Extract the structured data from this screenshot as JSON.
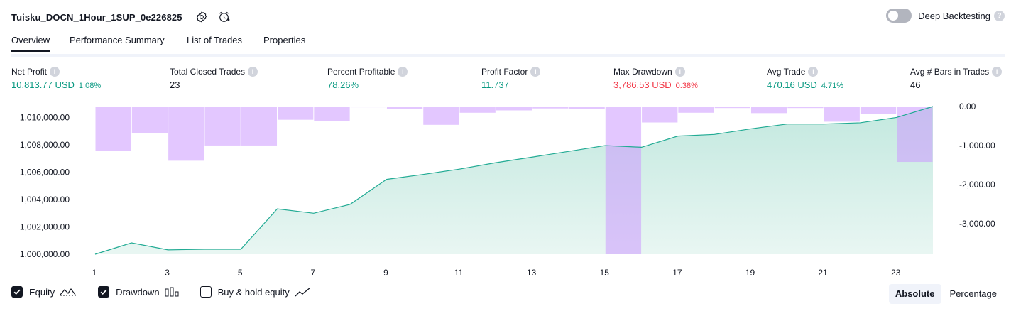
{
  "header": {
    "strategy_name": "Tuisku_DOCN_1Hour_1SUP_0e226825",
    "deep_backtesting_label": "Deep Backtesting",
    "deep_backtesting_enabled": false,
    "help_glyph": "?"
  },
  "tabs": [
    {
      "label": "Overview",
      "active": true
    },
    {
      "label": "Performance Summary",
      "active": false
    },
    {
      "label": "List of Trades",
      "active": false
    },
    {
      "label": "Properties",
      "active": false
    }
  ],
  "metrics": [
    {
      "label": "Net Profit",
      "value": "10,813.77 USD",
      "pct": "1.08%",
      "color": "green"
    },
    {
      "label": "Total Closed Trades",
      "value": "23",
      "pct": "",
      "color": "dark"
    },
    {
      "label": "Percent Profitable",
      "value": "78.26%",
      "pct": "",
      "color": "green"
    },
    {
      "label": "Profit Factor",
      "value": "11.737",
      "pct": "",
      "color": "green"
    },
    {
      "label": "Max Drawdown",
      "value": "3,786.53 USD",
      "pct": "0.38%",
      "color": "red"
    },
    {
      "label": "Avg Trade",
      "value": "470.16 USD",
      "pct": "4.71%",
      "color": "green"
    },
    {
      "label": "Avg # Bars in Trades",
      "value": "46",
      "pct": "",
      "color": "dark"
    }
  ],
  "info_glyph": "i",
  "chart_data": {
    "type": "line",
    "equity": {
      "name": "Equity",
      "x": [
        1,
        2,
        3,
        4,
        5,
        6,
        7,
        8,
        9,
        10,
        11,
        12,
        13,
        14,
        15,
        16,
        17,
        18,
        19,
        20,
        21,
        22,
        23,
        24
      ],
      "values": [
        1000000,
        1000830,
        1000320,
        1000360,
        1000360,
        1003320,
        1003000,
        1003650,
        1005480,
        1005840,
        1006230,
        1006700,
        1007110,
        1007530,
        1007950,
        1007830,
        1008650,
        1008770,
        1009180,
        1009530,
        1009530,
        1009620,
        1010010,
        1010813.77
      ]
    },
    "drawdown": {
      "name": "Drawdown",
      "x": [
        1,
        2,
        3,
        4,
        5,
        6,
        7,
        8,
        9,
        10,
        11,
        12,
        13,
        14,
        15,
        16,
        17,
        18,
        19,
        20,
        21,
        22,
        23,
        24
      ],
      "values": [
        -10,
        -1140,
        -680,
        -1390,
        -1000,
        -1000,
        -340,
        -370,
        -20,
        -60,
        -470,
        -160,
        -100,
        -50,
        -70,
        -3786.53,
        -410,
        -160,
        -40,
        -170,
        -40,
        -390,
        -190,
        -1420
      ]
    },
    "x_ticks": [
      "1",
      "3",
      "5",
      "7",
      "9",
      "11",
      "13",
      "15",
      "17",
      "19",
      "21",
      "23"
    ],
    "left_axis": {
      "ticks": [
        "1,010,000.00",
        "1,008,000.00",
        "1,006,000.00",
        "1,004,000.00",
        "1,002,000.00",
        "1,000,000.00"
      ],
      "range": [
        1000000,
        1010813.77
      ]
    },
    "right_axis": {
      "ticks": [
        "0.00",
        "-1,000.00",
        "-2,000.00",
        "-3,000.00"
      ],
      "range": [
        -3786.53,
        0
      ]
    },
    "colors": {
      "equity_line": "#22ab94",
      "equity_fill": "#c9ebe3",
      "drawdown_bar": "#cc99ff",
      "axis_text": "#131722"
    }
  },
  "legend": {
    "equity": {
      "label": "Equity",
      "checked": true
    },
    "drawdown": {
      "label": "Drawdown",
      "checked": true
    },
    "buy_hold": {
      "label": "Buy & hold equity",
      "checked": false
    }
  },
  "view_mode": {
    "absolute": "Absolute",
    "percentage": "Percentage",
    "selected": "absolute"
  }
}
